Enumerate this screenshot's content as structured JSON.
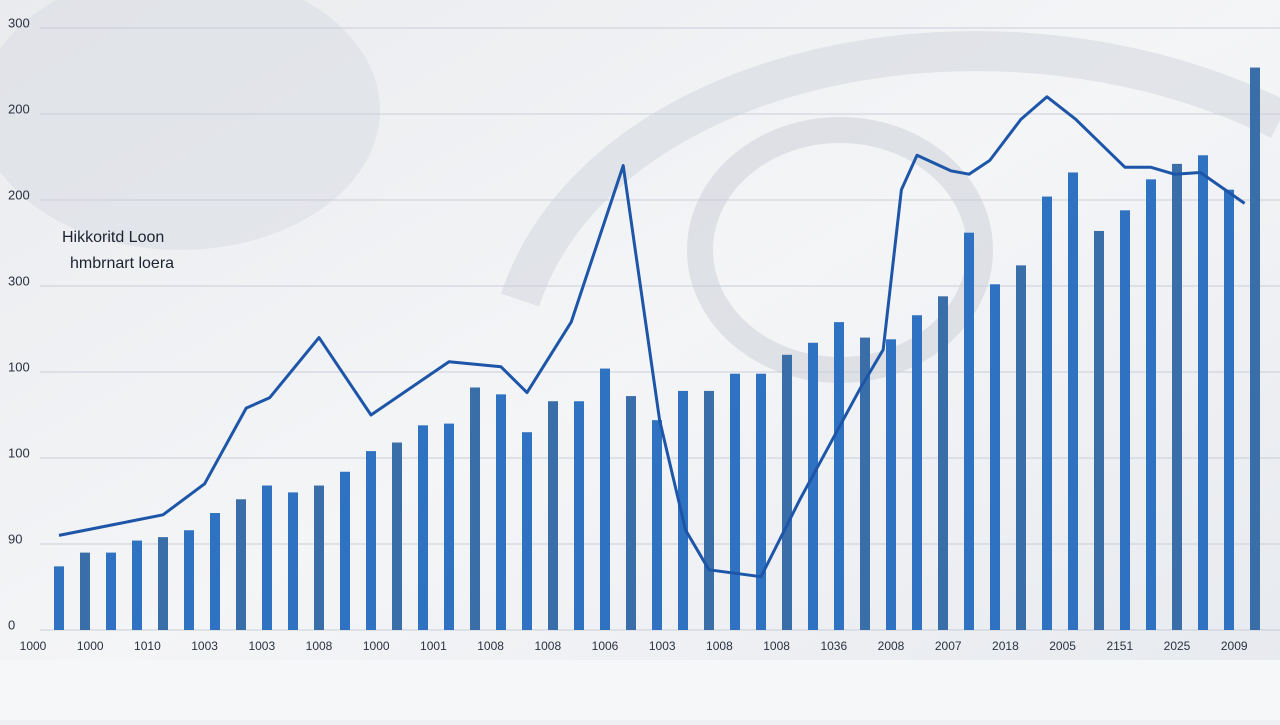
{
  "chart_data": {
    "type": "combo",
    "series": [
      {
        "name": "Hikkoritd Loon",
        "type": "bar",
        "color": "#2f72c2",
        "x": [
          1,
          2,
          3,
          4,
          5,
          6,
          7,
          8,
          9,
          10,
          11,
          12,
          13,
          14,
          15,
          16,
          17,
          18,
          19,
          20,
          21,
          22,
          23,
          24,
          25,
          26,
          27,
          28,
          29,
          30,
          31,
          32,
          33,
          34,
          35,
          36,
          37,
          38,
          39,
          40,
          41,
          42,
          43,
          44,
          45,
          46,
          47
        ],
        "values": [
          37,
          45,
          45,
          52,
          54,
          58,
          68,
          76,
          84,
          80,
          84,
          92,
          104,
          109,
          119,
          120,
          141,
          137,
          115,
          133,
          133,
          152,
          136,
          122,
          139,
          139,
          149,
          149,
          160,
          167,
          179,
          170,
          169,
          183,
          194,
          231,
          201,
          212,
          252,
          266,
          232,
          244,
          262,
          271,
          276,
          256,
          327
        ]
      },
      {
        "name": "hmbrnart loera",
        "type": "line",
        "color": "#1d56a8",
        "x": [
          1,
          3,
          5,
          6.6,
          8.2,
          9.1,
          11,
          13,
          16,
          18,
          19,
          20.7,
          22.7,
          24.1,
          25.1,
          26,
          28,
          29.5,
          31.8,
          32.7,
          33.4,
          34,
          35.3,
          36,
          36.8,
          38,
          39,
          40.1,
          42,
          43,
          43.9,
          44.9,
          46.6
        ],
        "values": [
          55,
          61,
          67,
          85,
          129,
          135,
          170,
          125,
          156,
          153,
          138,
          179,
          270,
          122,
          58,
          35,
          31,
          76,
          140,
          163,
          256,
          276,
          267,
          265,
          273,
          297,
          310,
          297,
          269,
          269,
          265,
          266,
          248
        ]
      }
    ],
    "xlim": [
      -0.5,
      47.5
    ],
    "xticks": [
      {
        "value": 0,
        "label": "1000"
      },
      {
        "value": 2.2,
        "label": "1000"
      },
      {
        "value": 4.4,
        "label": "1010"
      },
      {
        "value": 6.6,
        "label": "1003"
      },
      {
        "value": 8.8,
        "label": "1003"
      },
      {
        "value": 11,
        "label": "1008"
      },
      {
        "value": 13.2,
        "label": "1000"
      },
      {
        "value": 15.4,
        "label": "1001"
      },
      {
        "value": 17.6,
        "label": "1008"
      },
      {
        "value": 19.8,
        "label": "1008"
      },
      {
        "value": 22,
        "label": "1006"
      },
      {
        "value": 24.2,
        "label": "1003"
      },
      {
        "value": 26.4,
        "label": "1008"
      },
      {
        "value": 28.6,
        "label": "1008"
      },
      {
        "value": 30.8,
        "label": "1036"
      },
      {
        "value": 33,
        "label": "2008"
      },
      {
        "value": 35.2,
        "label": "2007"
      },
      {
        "value": 37.4,
        "label": "2018"
      },
      {
        "value": 39.6,
        "label": "2005"
      },
      {
        "value": 41.8,
        "label": "2151"
      },
      {
        "value": 44,
        "label": "2025"
      },
      {
        "value": 46.2,
        "label": "2009"
      }
    ],
    "ylim": [
      0,
      350
    ],
    "yticks": [
      0,
      {
        "value": 50,
        "label": "90"
      },
      100,
      {
        "value": 150,
        "label": "100"
      },
      {
        "value": 200,
        "label": "300"
      },
      {
        "value": 250,
        "label": "200"
      },
      {
        "value": 300,
        "label": "200"
      },
      {
        "value": 350,
        "label": "300"
      }
    ],
    "grid": true
  }
}
